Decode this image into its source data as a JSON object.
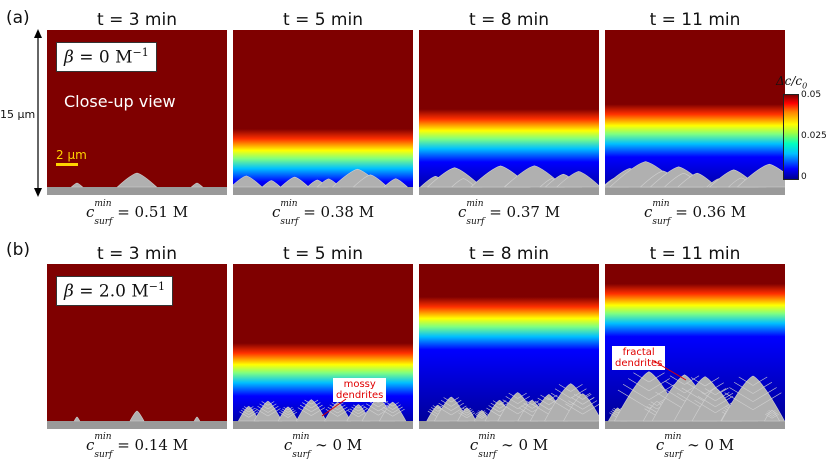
{
  "row_labels": [
    "(a)",
    "(b)"
  ],
  "titles": [
    "t = 3 min",
    "t = 5 min",
    "t = 8 min",
    "t = 11 min"
  ],
  "rows": [
    {
      "beta_symbol": "β",
      "beta_eq": " = 0 M",
      "beta_exp": "−1",
      "caption_prefix": "c",
      "caption_sup": "min",
      "caption_sub": "surf",
      "captions": [
        "= 0.51 M",
        "= 0.38 M",
        "= 0.37 M",
        "= 0.36 M"
      ],
      "front_levels": [
        0.17,
        0.3,
        0.42,
        0.45
      ]
    },
    {
      "beta_symbol": "β",
      "beta_eq": " = 2.0 M",
      "beta_exp": "−1",
      "caption_prefix": "c",
      "caption_sup": "min",
      "caption_sub": "surf",
      "captions": [
        "= 0.14 M",
        "∼ 0 M",
        "∼ 0 M",
        "∼ 0 M"
      ],
      "front_levels": [
        0.12,
        0.42,
        0.7,
        0.78
      ]
    }
  ],
  "closeup_label": "Close-up view",
  "height_label": "15 µm",
  "scalebar_label": "2 µm",
  "annotations": {
    "mossy": "mossy\ndendrites",
    "fractal": "fractal\ndendrites"
  },
  "colorbar": {
    "title_base": "Δc/c",
    "title_sub": "0",
    "ticks": [
      "0.05",
      "0.025",
      "0"
    ],
    "colormap": "jet",
    "range": [
      0,
      0.05
    ]
  },
  "colors": {
    "dendrite": "#b0b0b0",
    "high": "#7f0000",
    "low": "#00008f",
    "scalebar": "#ffd400",
    "annotation": "#e00000"
  }
}
